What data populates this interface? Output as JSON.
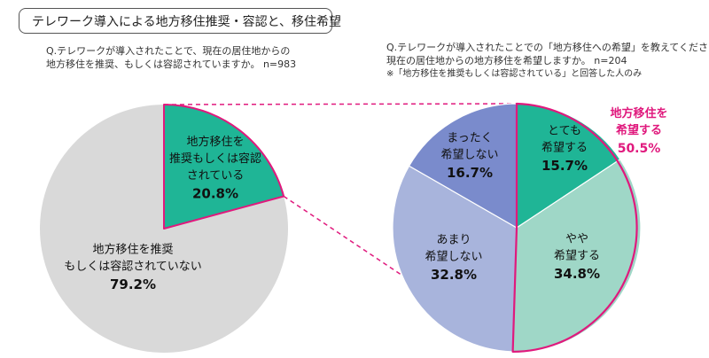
{
  "title": "テレワーク導入による地方移住推奨・容認と、移住希望",
  "questions": {
    "left": {
      "line1": "Q.テレワークが導入されたことで、現在の居住地からの",
      "line2": "地方移住を推奨、もしくは容認されていますか。 n=983"
    },
    "right": {
      "line1": "Q.テレワークが導入されたことでの「地方移住への希望」を教えてください。",
      "line2": "現在の居住地からの地方移住を希望しますか。 n=204",
      "note": "※「地方移住を推奨もしくは容認されている」と回答した人のみ"
    }
  },
  "callout": {
    "line1": "地方移住を",
    "line2": "希望する",
    "value": "50.5%",
    "color": "#e0197d"
  },
  "chart_data": [
    {
      "type": "pie",
      "n": 983,
      "slices": [
        {
          "label_lines": [
            "地方移住を",
            "推奨もしくは容認",
            "されている"
          ],
          "value": 20.8,
          "value_text": "20.8%",
          "color": "#1fb596"
        },
        {
          "label_lines": [
            "地方移住を推奨",
            "もしくは容認されていない"
          ],
          "value": 79.2,
          "value_text": "79.2%",
          "color": "#d9d9d9"
        }
      ]
    },
    {
      "type": "pie",
      "n": 204,
      "slices": [
        {
          "label_lines": [
            "とても",
            "希望する"
          ],
          "value": 15.7,
          "value_text": "15.7%",
          "color": "#1fb596"
        },
        {
          "label_lines": [
            "やや",
            "希望する"
          ],
          "value": 34.8,
          "value_text": "34.8%",
          "color": "#9fd7c7"
        },
        {
          "label_lines": [
            "あまり",
            "希望しない"
          ],
          "value": 32.8,
          "value_text": "32.8%",
          "color": "#a8b4dc"
        },
        {
          "label_lines": [
            "まったく",
            "希望しない"
          ],
          "value": 16.7,
          "value_text": "16.7%",
          "color": "#7a8bcc"
        }
      ]
    }
  ]
}
